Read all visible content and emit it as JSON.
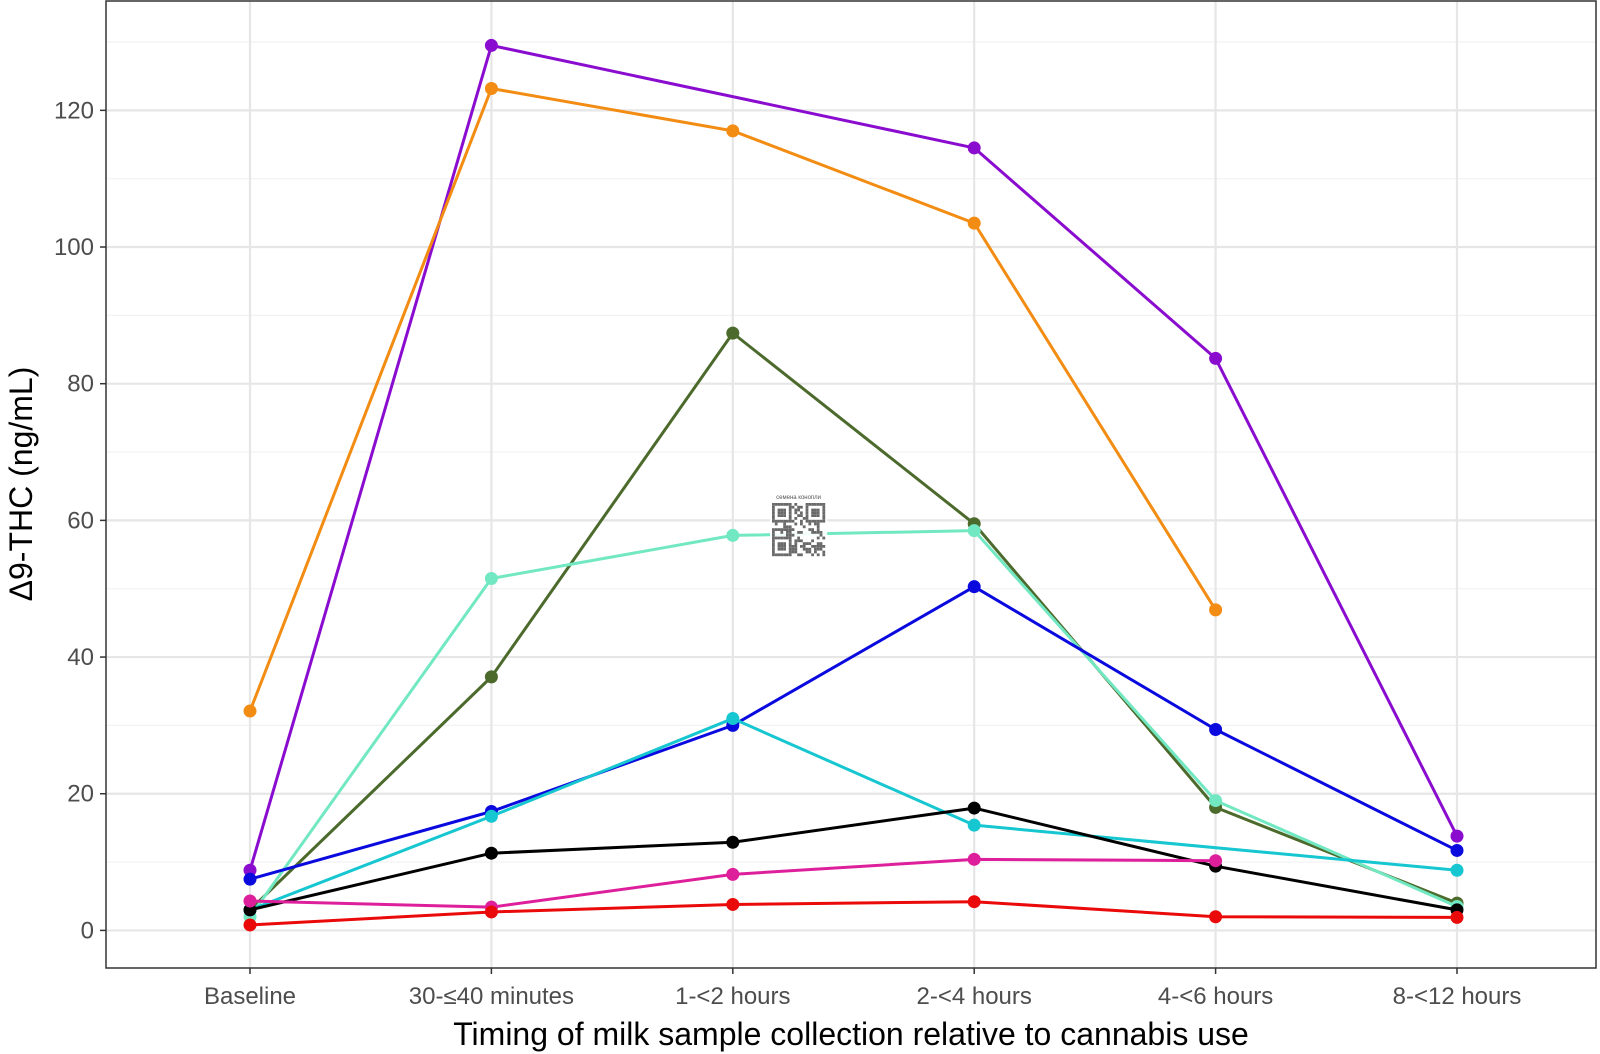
{
  "chart_data": {
    "type": "line",
    "title": "",
    "xlabel": "Timing of milk sample collection relative to cannabis use",
    "ylabel": "Δ9-THC (ng/mL)",
    "categories": [
      "Baseline",
      "30-≤40 minutes",
      "1-<2 hours",
      "2-<4 hours",
      "4-<6 hours",
      "8-<12 hours"
    ],
    "ylim": [
      -5.5,
      136
    ],
    "yticks": [
      0,
      20,
      40,
      60,
      80,
      100,
      120
    ],
    "ytick_labels": [
      "0",
      "20",
      "40",
      "60",
      "80",
      "100",
      "120"
    ],
    "grid": true,
    "legend": "none",
    "series": [
      {
        "color": "#8a0ccf",
        "values": [
          8.8,
          129.5,
          null,
          114.5,
          83.7,
          13.8
        ]
      },
      {
        "color": "#f28c12",
        "values": [
          32.1,
          123.2,
          117.0,
          103.5,
          46.9,
          null
        ]
      },
      {
        "color": "#4c6a2c",
        "values": [
          3.0,
          37.1,
          87.4,
          59.5,
          18.0,
          4.0
        ]
      },
      {
        "color": "#72e8c2",
        "values": [
          2.0,
          51.5,
          57.8,
          58.5,
          19.0,
          3.5
        ]
      },
      {
        "color": "#0a0adf",
        "values": [
          7.5,
          17.4,
          30.0,
          50.3,
          29.4,
          11.7
        ]
      },
      {
        "color": "#16c6d0",
        "values": [
          3.0,
          16.7,
          31.0,
          15.4,
          null,
          8.8
        ]
      },
      {
        "color": "#000000",
        "values": [
          3.0,
          11.3,
          12.9,
          17.9,
          9.4,
          3.0
        ]
      },
      {
        "color": "#de1f9b",
        "values": [
          4.3,
          3.4,
          8.2,
          10.4,
          10.2,
          null
        ]
      },
      {
        "color": "#ea0a0a",
        "values": [
          0.8,
          2.7,
          3.8,
          4.2,
          2.0,
          1.9
        ]
      }
    ],
    "watermark_text": "семена конопли"
  }
}
